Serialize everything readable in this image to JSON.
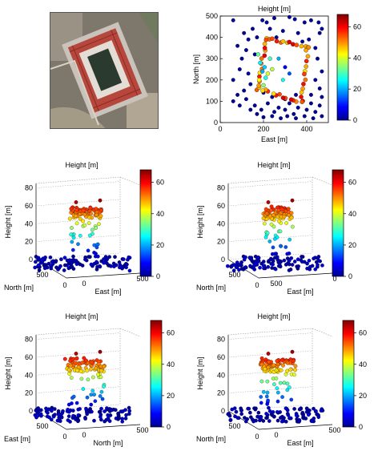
{
  "chart_data": [
    {
      "type": "scatter",
      "view": "top-down",
      "title": "Height [m]",
      "xlabel": "East [m]",
      "ylabel": "North [m]",
      "xlim": [
        0,
        500
      ],
      "ylim": [
        0,
        500
      ],
      "x_ticks": [
        "0",
        "200",
        "400"
      ],
      "y_ticks": [
        "0",
        "100",
        "200",
        "300",
        "400",
        "500"
      ],
      "colorbar": {
        "label": "Height [m]",
        "range": [
          0,
          68
        ],
        "ticks": [
          "0",
          "20",
          "40",
          "60"
        ],
        "colormap": "jet"
      },
      "ground_points": [
        [
          195,
          480
        ],
        [
          215,
          470
        ],
        [
          250,
          490
        ],
        [
          320,
          495
        ],
        [
          345,
          485
        ],
        [
          390,
          470
        ],
        [
          420,
          480
        ],
        [
          455,
          470
        ],
        [
          470,
          440
        ],
        [
          460,
          420
        ],
        [
          110,
          420
        ],
        [
          150,
          440
        ],
        [
          130,
          390
        ],
        [
          170,
          400
        ],
        [
          80,
          360
        ],
        [
          120,
          340
        ],
        [
          100,
          300
        ],
        [
          160,
          320
        ],
        [
          90,
          250
        ],
        [
          130,
          230
        ],
        [
          60,
          200
        ],
        [
          140,
          180
        ],
        [
          110,
          150
        ],
        [
          80,
          130
        ],
        [
          60,
          100
        ],
        [
          90,
          80
        ],
        [
          120,
          110
        ],
        [
          160,
          80
        ],
        [
          190,
          60
        ],
        [
          220,
          90
        ],
        [
          250,
          50
        ],
        [
          270,
          70
        ],
        [
          300,
          60
        ],
        [
          320,
          90
        ],
        [
          340,
          40
        ],
        [
          360,
          70
        ],
        [
          380,
          100
        ],
        [
          400,
          60
        ],
        [
          420,
          90
        ],
        [
          440,
          50
        ],
        [
          460,
          80
        ],
        [
          470,
          30
        ],
        [
          430,
          20
        ],
        [
          390,
          30
        ],
        [
          350,
          20
        ],
        [
          310,
          30
        ],
        [
          280,
          20
        ],
        [
          240,
          30
        ],
        [
          200,
          25
        ],
        [
          170,
          40
        ],
        [
          140,
          60
        ],
        [
          460,
          160
        ],
        [
          440,
          200
        ],
        [
          470,
          240
        ],
        [
          450,
          300
        ],
        [
          440,
          350
        ],
        [
          410,
          390
        ],
        [
          380,
          380
        ],
        [
          360,
          420
        ],
        [
          290,
          430
        ],
        [
          260,
          400
        ],
        [
          230,
          440
        ],
        [
          60,
          480
        ],
        [
          470,
          120
        ],
        [
          300,
          110
        ],
        [
          350,
          130
        ],
        [
          240,
          120
        ],
        [
          200,
          140
        ],
        [
          420,
          130
        ]
      ],
      "roof_outline": {
        "corners": [
          [
            215,
            395
          ],
          [
            405,
            355
          ],
          [
            375,
            95
          ],
          [
            175,
            160
          ]
        ],
        "height_range": [
          44,
          62
        ]
      },
      "facade_points": [
        [
          195,
          240
        ],
        [
          205,
          260
        ],
        [
          185,
          280
        ],
        [
          210,
          210
        ],
        [
          230,
          300
        ],
        [
          175,
          320
        ],
        [
          200,
          175
        ],
        [
          240,
          250
        ],
        [
          220,
          230
        ],
        [
          180,
          200
        ]
      ],
      "interior_points": [
        [
          300,
          260
        ],
        [
          320,
          230
        ],
        [
          270,
          300
        ],
        [
          290,
          200
        ]
      ]
    },
    {
      "type": "scatter3d",
      "title": "Height [m]",
      "zlabel": "Height [m]",
      "axis_a": {
        "label": "North [m]",
        "ticks": [
          "500",
          "0"
        ]
      },
      "axis_b": {
        "label": "East [m]",
        "ticks": [
          "0",
          "500"
        ]
      },
      "z_ticks": [
        "0",
        "20",
        "40",
        "60",
        "80"
      ],
      "zlim": [
        0,
        85
      ],
      "colorbar": {
        "range": [
          0,
          68
        ],
        "ticks": [
          "0",
          "20",
          "40",
          "60"
        ]
      },
      "tower_width": 0.55
    },
    {
      "type": "scatter3d",
      "title": "Height [m]",
      "zlabel": "Height [m]",
      "axis_a": {
        "label": "North [m]",
        "ticks": [
          "500",
          "0"
        ]
      },
      "axis_b": {
        "label": "East [m]",
        "ticks": [
          "500",
          "0"
        ]
      },
      "z_ticks": [
        "0",
        "20",
        "40",
        "60",
        "80"
      ],
      "zlim": [
        0,
        85
      ],
      "colorbar": {
        "range": [
          0,
          68
        ],
        "ticks": [
          "0",
          "20",
          "40",
          "60"
        ]
      },
      "tower_width": 0.5
    },
    {
      "type": "scatter3d",
      "title": "Height [m]",
      "zlabel": "Height [m]",
      "axis_a": {
        "label": "East [m]",
        "ticks": [
          "500",
          "0"
        ]
      },
      "axis_b": {
        "label": "North [m]",
        "ticks": [
          "0",
          "500"
        ]
      },
      "z_ticks": [
        "0",
        "20",
        "40",
        "60",
        "80"
      ],
      "zlim": [
        0,
        85
      ],
      "colorbar": {
        "range": [
          0,
          68
        ],
        "ticks": [
          "0",
          "20",
          "40",
          "60"
        ]
      },
      "tower_width": 0.7
    },
    {
      "type": "scatter3d",
      "title": "Height [m]",
      "zlabel": "Height [m]",
      "axis_a": {
        "label": "North [m]",
        "ticks": [
          "500",
          "0"
        ]
      },
      "axis_b": {
        "label": "East [m]",
        "ticks": [
          "0",
          "500"
        ]
      },
      "z_ticks": [
        "0",
        "20",
        "40",
        "60",
        "80"
      ],
      "zlim": [
        0,
        85
      ],
      "colorbar": {
        "range": [
          0,
          68
        ],
        "ticks": [
          "0",
          "20",
          "40",
          "60"
        ]
      },
      "tower_width": 0.6
    }
  ]
}
